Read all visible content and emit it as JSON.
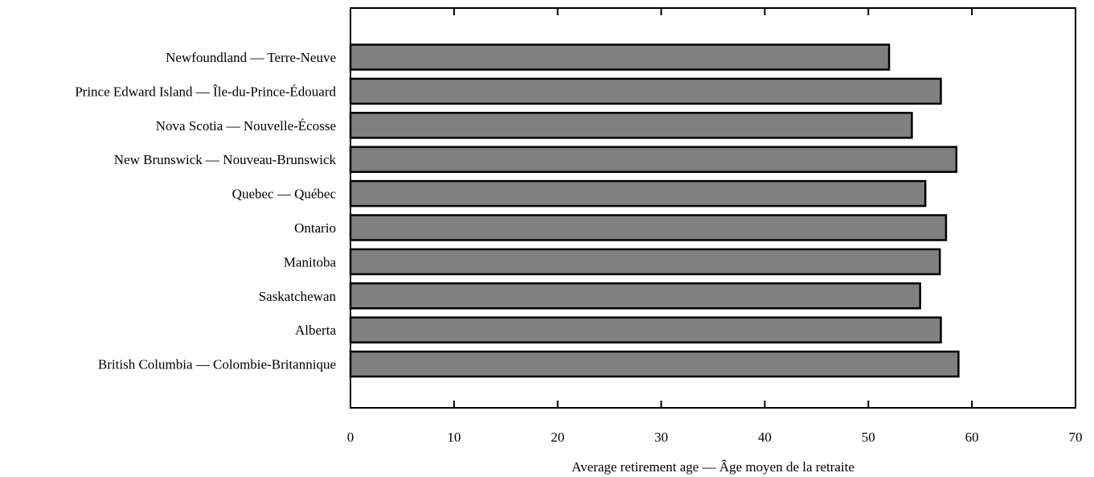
{
  "chart_data": {
    "type": "bar",
    "orientation": "horizontal",
    "categories": [
      "Newfoundland — Terre-Neuve",
      "Prince Edward Island — Île-du-Prince-Édouard",
      "Nova Scotia — Nouvelle-Écosse",
      "New Brunswick — Nouveau-Brunswick",
      "Quebec — Québec",
      "Ontario",
      "Manitoba",
      "Saskatchewan",
      "Alberta",
      "British Columbia — Colombie-Britannique"
    ],
    "values": [
      52.0,
      57.0,
      54.2,
      58.5,
      55.5,
      57.5,
      56.9,
      55.0,
      57.0,
      58.7
    ],
    "xlabel": "Average retirement age — Âge moyen de la retraite",
    "ylabel": "",
    "xlim": [
      0,
      70
    ],
    "xticks": [
      "0",
      "10",
      "20",
      "30",
      "40",
      "50",
      "60",
      "70"
    ],
    "grid": false,
    "legend": "none",
    "bar_color": "#808080",
    "bar_edge_color": "#000000"
  }
}
